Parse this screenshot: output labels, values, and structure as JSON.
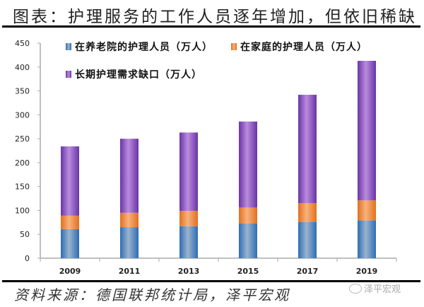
{
  "header": {
    "title": "图表：护理服务的工作人员逐年增加，但依旧稀缺"
  },
  "footer": {
    "source": "资料来源：德国联邦统计局，泽平宏观",
    "watermark": "泽平宏观"
  },
  "colors": {
    "blue": "#3F7FC4",
    "orange": "#ED8A3F",
    "purple": "#8E5CC4",
    "axis": "#AAAAAA"
  },
  "chart_data": {
    "type": "bar",
    "stacked": true,
    "title": "图表：护理服务的工作人员逐年增加，但依旧稀缺",
    "xlabel": "",
    "ylabel": "",
    "categories": [
      "2009",
      "2011",
      "2013",
      "2015",
      "2017",
      "2019"
    ],
    "ylim": [
      0,
      450
    ],
    "yticks": [
      0,
      50,
      100,
      150,
      200,
      250,
      300,
      350,
      400,
      450
    ],
    "grid": false,
    "legend_position": "top-left",
    "series": [
      {
        "name": "在养老院的护理人员（万人）",
        "color": "#3F7FC4",
        "values": [
          61,
          65,
          67,
          73,
          76,
          79
        ]
      },
      {
        "name": "在家庭的护理人员（万人）",
        "color": "#ED8A3F",
        "values": [
          28,
          30,
          32,
          33,
          39,
          42
        ]
      },
      {
        "name": "长期护理需求缺口（万人）",
        "color": "#8E5CC4",
        "values": [
          145,
          155,
          164,
          180,
          227,
          292
        ]
      }
    ]
  }
}
